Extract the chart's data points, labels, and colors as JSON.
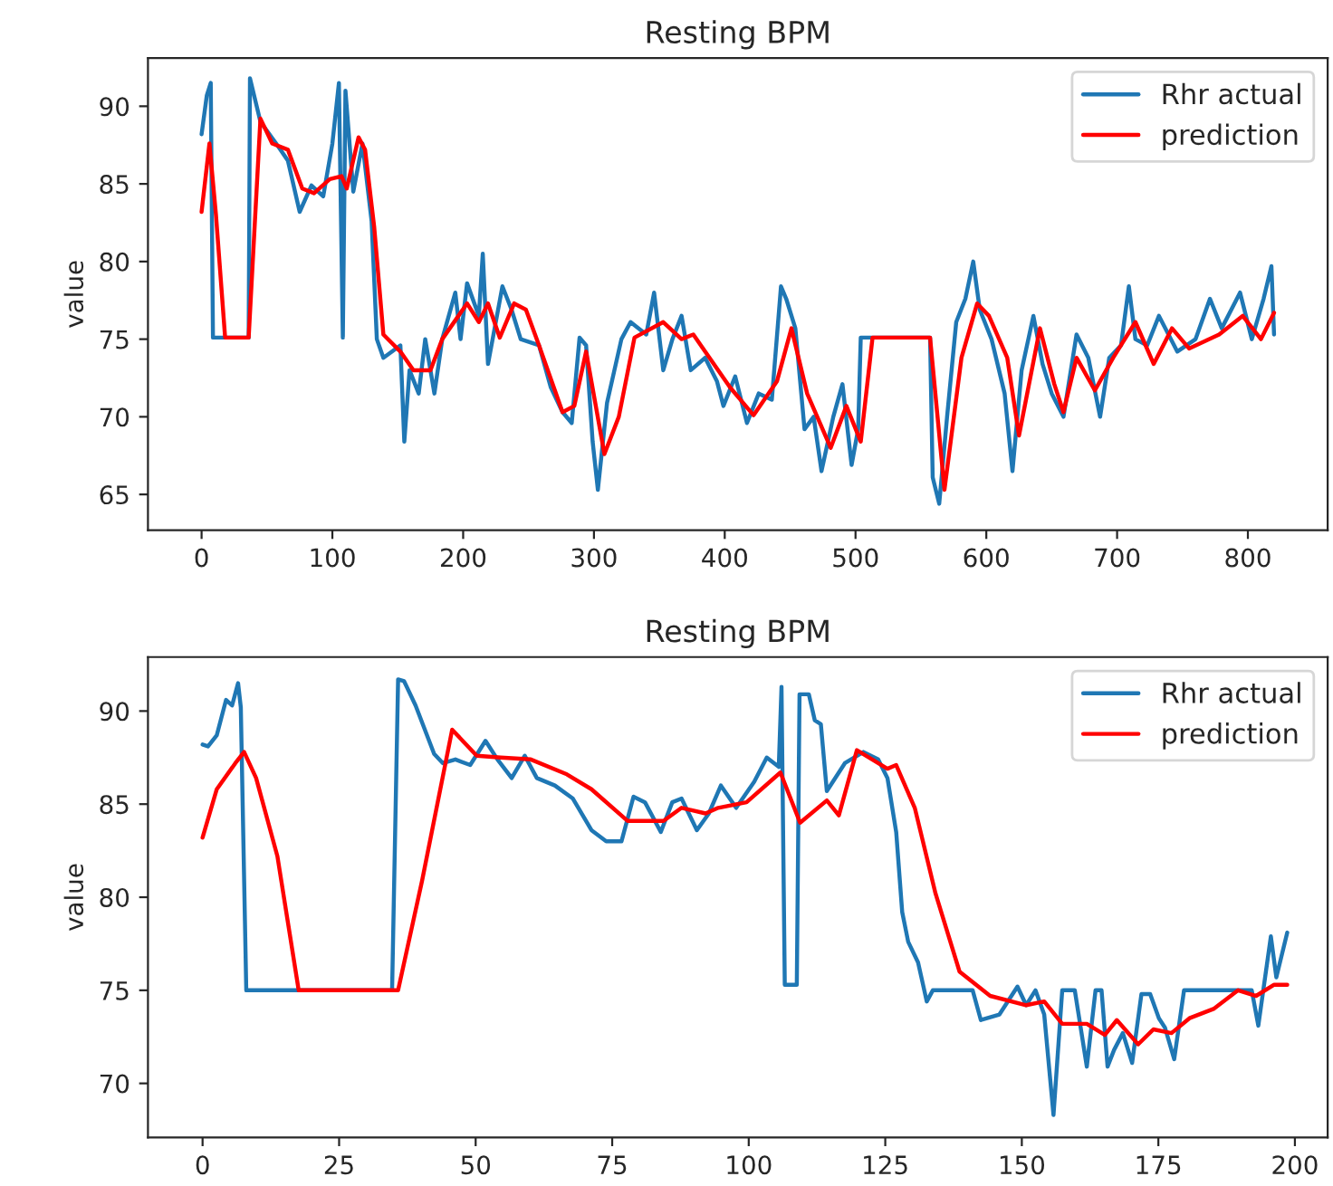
{
  "chart_data": [
    {
      "type": "line",
      "title": "Resting BPM",
      "ylabel": "value",
      "xlim": [
        -41,
        861
      ],
      "ylim": [
        62.7,
        93.1
      ],
      "xticks": [
        0,
        100,
        200,
        300,
        400,
        500,
        600,
        700,
        800
      ],
      "yticks": [
        65,
        70,
        75,
        80,
        85,
        90
      ],
      "legend": "top right",
      "grid": false,
      "series": [
        {
          "name": "Rhr actual",
          "color": "#1f77b4",
          "x": [
            0,
            4,
            7,
            8.7,
            36,
            37,
            45,
            57,
            66,
            75,
            84,
            93,
            100,
            105,
            108,
            110,
            116,
            123,
            130,
            134,
            139,
            152,
            155,
            159,
            166,
            171,
            178,
            184,
            194,
            198,
            203,
            212,
            215,
            219,
            230,
            237,
            244,
            258,
            267,
            276,
            283,
            289,
            294,
            299,
            303,
            310,
            321,
            328,
            340,
            346,
            353,
            360,
            367,
            374,
            385,
            394,
            399,
            408,
            417,
            426,
            436,
            443,
            447,
            454,
            461,
            468,
            474,
            483,
            490,
            497,
            502,
            504,
            557,
            559,
            564,
            570,
            577,
            584,
            590,
            595,
            604,
            614,
            620,
            627,
            636,
            643,
            650,
            659,
            669,
            678,
            687,
            694,
            703,
            709,
            714,
            723,
            732,
            746,
            760,
            771,
            780,
            794,
            803,
            812,
            818,
            820
          ],
          "values": [
            88.2,
            90.7,
            91.5,
            75.1,
            75.1,
            91.8,
            89,
            87.6,
            86.5,
            83.2,
            84.9,
            84.2,
            87.6,
            91.5,
            75.1,
            91,
            84.5,
            87.6,
            82.6,
            75,
            73.8,
            74.6,
            68.4,
            73,
            71.5,
            75,
            71.5,
            75,
            78,
            75,
            78.6,
            76.5,
            80.5,
            73.4,
            78.4,
            76.9,
            75,
            74.6,
            71.9,
            70.3,
            69.6,
            75.1,
            74.6,
            68.4,
            65.3,
            70.9,
            75,
            76.1,
            75.3,
            78,
            73,
            75,
            76.5,
            73,
            73.8,
            72.3,
            70.7,
            72.6,
            69.6,
            71.5,
            71.1,
            78.4,
            77.6,
            75.7,
            69.2,
            70,
            66.5,
            70,
            72.1,
            66.9,
            69.2,
            75.1,
            75.1,
            66.1,
            64.4,
            70,
            76.1,
            77.6,
            80,
            76.9,
            75,
            71.5,
            66.5,
            73,
            76.5,
            73.4,
            71.5,
            70,
            75.3,
            73.8,
            70,
            73.8,
            74.6,
            78.4,
            75,
            74.6,
            76.5,
            74.2,
            75,
            77.6,
            75.7,
            78,
            75,
            77.6,
            79.7,
            75.3
          ]
        },
        {
          "name": "prediction",
          "color": "#ff0000",
          "x": [
            0,
            6,
            11,
            18,
            36,
            45,
            54,
            66,
            77,
            86,
            98,
            107,
            111,
            120,
            125,
            132,
            139,
            152,
            162,
            175,
            184,
            203,
            212,
            219,
            228,
            239,
            248,
            258,
            276,
            285,
            294,
            308,
            319,
            331,
            353,
            367,
            376,
            385,
            404,
            422,
            440,
            451,
            463,
            481,
            493,
            504,
            513,
            557,
            568,
            581,
            593,
            602,
            616,
            625,
            641,
            652,
            659,
            669,
            683,
            697,
            714,
            728,
            742,
            755,
            778,
            796,
            810,
            820
          ],
          "values": [
            83.2,
            87.6,
            83,
            75.1,
            75.1,
            89.2,
            87.6,
            87.2,
            84.7,
            84.4,
            85.3,
            85.5,
            84.7,
            88,
            87.2,
            82.2,
            75.3,
            74.2,
            73,
            73,
            75,
            77.3,
            76.1,
            77.3,
            75.1,
            77.3,
            76.9,
            74.6,
            70.3,
            70.7,
            74.2,
            67.6,
            70,
            75.1,
            76.1,
            75,
            75.3,
            74.2,
            71.9,
            70.1,
            72.3,
            75.7,
            71.5,
            68,
            70.7,
            68.4,
            75.1,
            75.1,
            65.3,
            73.8,
            77.3,
            76.5,
            73.8,
            68.8,
            75.7,
            72.1,
            70.3,
            73.8,
            71.7,
            73.8,
            76.1,
            73.4,
            75.7,
            74.4,
            75.3,
            76.5,
            75,
            76.7
          ]
        }
      ]
    },
    {
      "type": "line",
      "title": "Resting BPM",
      "ylabel": "value",
      "xlim": [
        -10,
        206
      ],
      "ylim": [
        67.1,
        92.9
      ],
      "xticks": [
        0,
        25,
        50,
        75,
        100,
        125,
        150,
        175,
        200
      ],
      "yticks": [
        70,
        75,
        80,
        85,
        90
      ],
      "legend": "top right",
      "grid": false,
      "series": [
        {
          "name": "Rhr actual",
          "color": "#1f77b4",
          "x": [
            0,
            1,
            2.6,
            4.3,
            5.4,
            6.5,
            7,
            8,
            34.7,
            35.8,
            36.9,
            39,
            42.4,
            44,
            46.3,
            49,
            51.8,
            54,
            56.6,
            59,
            61.2,
            64.5,
            67.8,
            71.2,
            73.9,
            76.7,
            78.9,
            81,
            83.9,
            86,
            87.7,
            90.5,
            92.7,
            94.9,
            97.7,
            101,
            103.3,
            105.5,
            106,
            106.6,
            108.8,
            109.3,
            111,
            112.1,
            113.2,
            114.3,
            117.6,
            121,
            123.7,
            125.4,
            127,
            128.1,
            129.2,
            131,
            132.6,
            133.7,
            141,
            142.5,
            145.9,
            149.2,
            150.8,
            152.5,
            154.1,
            155.8,
            157.4,
            159.7,
            161.9,
            163.5,
            164.6,
            165.7,
            166.9,
            168.5,
            170.2,
            171.9,
            173.5,
            175.1,
            176.2,
            177.9,
            179.7,
            192.1,
            193.3,
            195.6,
            196.6,
            198.6
          ],
          "values": [
            88.2,
            88.1,
            88.7,
            90.6,
            90.3,
            91.5,
            90.2,
            75,
            75,
            91.7,
            91.6,
            90.3,
            87.7,
            87.2,
            87.4,
            87.1,
            88.4,
            87.4,
            86.4,
            87.6,
            86.4,
            86,
            85.3,
            83.6,
            83,
            83,
            85.4,
            85.1,
            83.5,
            85.1,
            85.3,
            83.6,
            84.5,
            86,
            84.8,
            86.2,
            87.5,
            87,
            91.3,
            75.3,
            75.3,
            90.9,
            90.9,
            89.5,
            89.3,
            85.7,
            87.2,
            87.8,
            87.4,
            86.4,
            83.5,
            79.2,
            77.6,
            76.5,
            74.4,
            75,
            75,
            73.4,
            73.7,
            75.2,
            74.2,
            75,
            73.7,
            68.3,
            75,
            75,
            70.9,
            75,
            75,
            70.9,
            71.8,
            72.7,
            71.1,
            74.8,
            74.8,
            73.5,
            73,
            71.3,
            75,
            75,
            73.1,
            77.9,
            75.7,
            78.1
          ]
        },
        {
          "name": "prediction",
          "color": "#ff0000",
          "x": [
            0,
            2.6,
            6,
            7.6,
            9.8,
            13.7,
            17.6,
            35.8,
            40.2,
            45.7,
            50.2,
            54.6,
            60.1,
            66.7,
            71.2,
            77.8,
            84.4,
            87.7,
            92.1,
            94.4,
            99.6,
            105.8,
            109.4,
            114.3,
            116.5,
            119.8,
            125.4,
            127,
            130.4,
            134.2,
            138.6,
            144.2,
            150.8,
            154.1,
            157.4,
            161.9,
            165.2,
            167.4,
            171.3,
            174.1,
            177.4,
            180.7,
            185.1,
            189.6,
            192.9,
            196.2,
            198.6
          ],
          "values": [
            83.2,
            85.8,
            87.2,
            87.8,
            86.4,
            82.2,
            75,
            75,
            80.9,
            89,
            87.6,
            87.5,
            87.4,
            86.6,
            85.8,
            84.1,
            84.1,
            84.8,
            84.5,
            84.8,
            85.1,
            86.7,
            84,
            85.2,
            84.4,
            87.9,
            86.9,
            87.1,
            84.8,
            80.2,
            76,
            74.7,
            74.2,
            74.4,
            73.2,
            73.2,
            72.6,
            73.4,
            72.1,
            72.9,
            72.7,
            73.5,
            74,
            75,
            74.7,
            75.3,
            75.3
          ]
        }
      ]
    }
  ]
}
